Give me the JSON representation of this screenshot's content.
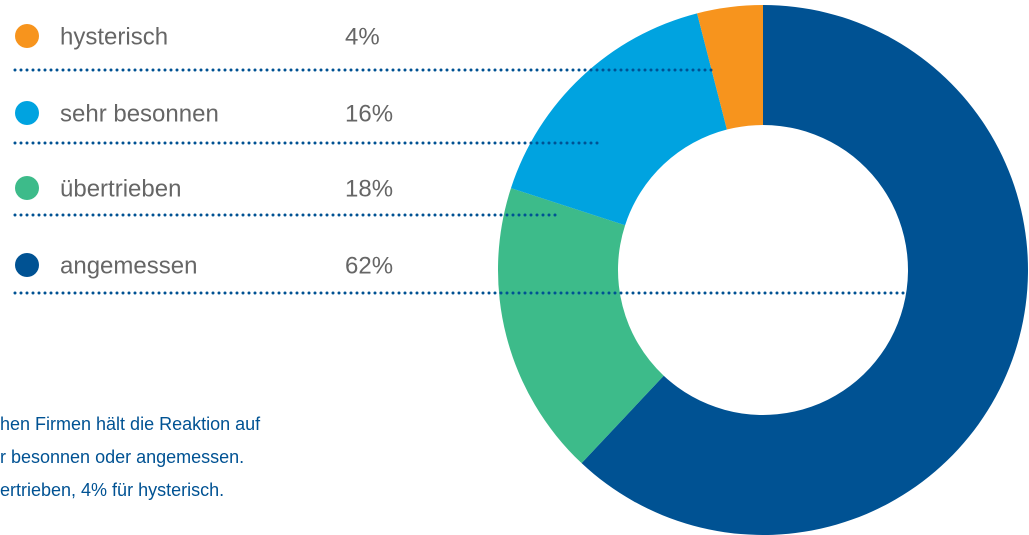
{
  "chart_data": {
    "type": "pie",
    "categories": [
      "hysterisch",
      "sehr besonnen",
      "übertrieben",
      "angemessen"
    ],
    "values": [
      4,
      16,
      18,
      62
    ],
    "value_labels": [
      "4%",
      "16%",
      "18%",
      "62%"
    ],
    "colors": [
      "#f7941d",
      "#00a3e0",
      "#3dbb8a",
      "#005293"
    ],
    "annotation": [
      "hen Firmen hält die Reaktion auf",
      "r besonnen oder angemessen.",
      "ertrieben, 4% für hysterisch."
    ]
  }
}
